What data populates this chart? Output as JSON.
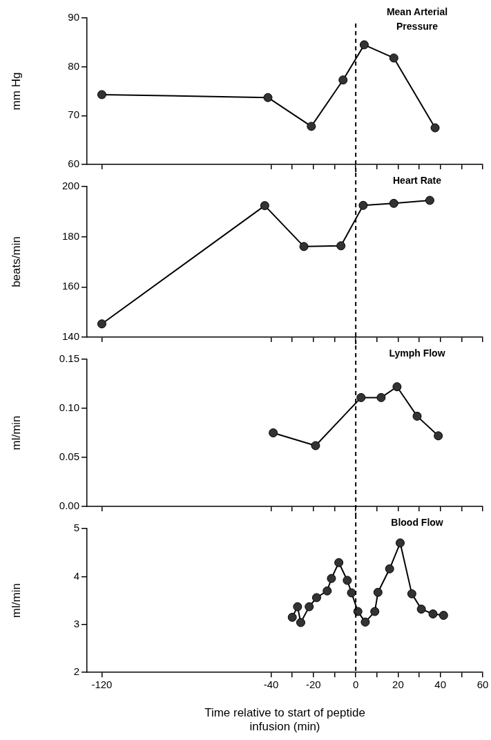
{
  "chart_data": [
    {
      "type": "line",
      "title": "Mean Arterial Pressure",
      "ylabel": "mm Hg",
      "marker": "circle",
      "tick_labels": "y",
      "x": [
        -120,
        -41.5,
        -21,
        -6,
        4,
        18,
        37.5
      ],
      "series": [
        {
          "color": "#333333",
          "values": [
            74.3,
            73.7,
            67.8,
            77.3,
            84.5,
            81.8,
            67.5
          ]
        }
      ],
      "xlim": [
        -127,
        60
      ],
      "xticks": [
        -120,
        -40,
        -30,
        -20,
        -10,
        0,
        10,
        20,
        30,
        40,
        50,
        60
      ],
      "ylim": [
        60,
        90
      ],
      "yticks": [
        60,
        70,
        80,
        90
      ],
      "ref_lines": [
        {
          "axis": "x",
          "value": 0,
          "line_style": "dashed",
          "color": "#000000"
        }
      ]
    },
    {
      "type": "line",
      "title": "Heart Rate",
      "ylabel": "beats/min",
      "marker": "circle",
      "tick_labels": "y",
      "x": [
        -120,
        -43,
        -24.5,
        -7,
        3.5,
        18,
        35
      ],
      "series": [
        {
          "color": "#333333",
          "values": [
            145.3,
            192.4,
            176.1,
            176.4,
            192.5,
            193.3,
            194.5
          ]
        }
      ],
      "xlim": [
        -127,
        60
      ],
      "xticks": [
        -120,
        -40,
        -30,
        -20,
        -10,
        0,
        10,
        20,
        30,
        40,
        50,
        60
      ],
      "ylim": [
        140,
        200
      ],
      "yticks": [
        140,
        160,
        180,
        200
      ],
      "ref_lines": [
        {
          "axis": "x",
          "value": 0,
          "line_style": "dashed",
          "color": "#000000"
        }
      ]
    },
    {
      "type": "line",
      "title": "Lymph Flow",
      "ylabel": "ml/min",
      "marker": "circle",
      "tick_labels": "y",
      "x": [
        -39,
        -19,
        2.5,
        12,
        19.5,
        29,
        39
      ],
      "series": [
        {
          "color": "#333333",
          "values": [
            0.075,
            0.062,
            0.111,
            0.111,
            0.122,
            0.092,
            0.072
          ]
        }
      ],
      "xlim": [
        -127,
        60
      ],
      "xticks": [
        -120,
        -40,
        -30,
        -20,
        -10,
        0,
        10,
        20,
        30,
        40,
        50,
        60
      ],
      "ylim": [
        0,
        0.15
      ],
      "yticks": [
        {
          "value": 0,
          "label": "0.00"
        },
        {
          "value": 0.05,
          "label": "0.05"
        },
        {
          "value": 0.1,
          "label": "0.10"
        },
        {
          "value": 0.15,
          "label": "0.15"
        }
      ],
      "ref_lines": [
        {
          "axis": "x",
          "value": 0,
          "line_style": "dashed",
          "color": "#000000"
        }
      ]
    },
    {
      "type": "line",
      "title": "Blood Flow",
      "ylabel": "ml/min",
      "xlabel": "Time relative to start of peptide infusion (min)",
      "marker": "circle",
      "x": [
        -30,
        -27.5,
        -26,
        -22,
        -18.5,
        -13.5,
        -11.5,
        -8,
        -4,
        -2,
        1,
        4.5,
        9,
        10.5,
        16,
        21,
        26.5,
        31,
        36.5,
        41.5
      ],
      "series": [
        {
          "color": "#333333",
          "values": [
            3.15,
            3.37,
            3.04,
            3.37,
            3.56,
            3.7,
            3.96,
            4.29,
            3.92,
            3.66,
            3.27,
            3.05,
            3.27,
            3.67,
            4.16,
            4.7,
            3.64,
            3.32,
            3.22,
            3.19
          ]
        }
      ],
      "xlim": [
        -127,
        60
      ],
      "xticks": [
        -120,
        -40,
        {
          "value": -30,
          "label": null
        },
        -20,
        {
          "value": -10,
          "label": null
        },
        0,
        {
          "value": 10,
          "label": null
        },
        20,
        {
          "value": 30,
          "label": null
        },
        40,
        {
          "value": 50,
          "label": null
        },
        60
      ],
      "ylim": [
        2,
        5
      ],
      "yticks": [
        2,
        3,
        4,
        5
      ],
      "ref_lines": [
        {
          "axis": "x",
          "value": 0,
          "line_style": "dashed",
          "color": "#000000"
        }
      ]
    }
  ]
}
